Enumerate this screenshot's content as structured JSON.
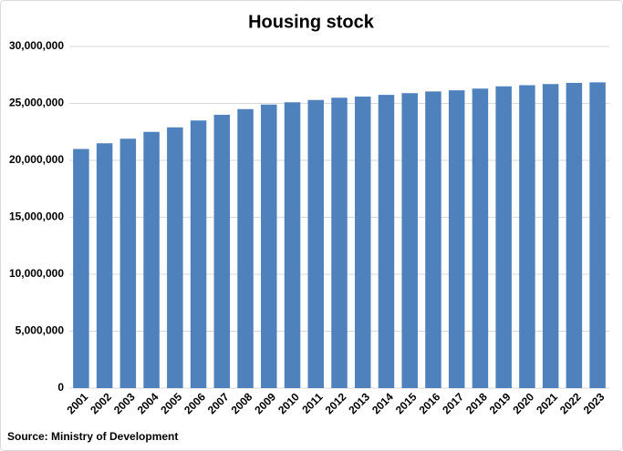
{
  "chart_data": {
    "type": "bar",
    "title": "Housing stock",
    "source": "Source: Ministry of Development",
    "categories": [
      "2001",
      "2002",
      "2003",
      "2004",
      "2005",
      "2006",
      "2007",
      "2008",
      "2009",
      "2010",
      "2011",
      "2012",
      "2013",
      "2014",
      "2015",
      "2016",
      "2017",
      "2018",
      "2019",
      "2020",
      "2021",
      "2022",
      "2023"
    ],
    "values": [
      21000000,
      21500000,
      21900000,
      22500000,
      22900000,
      23500000,
      24000000,
      24500000,
      24900000,
      25100000,
      25300000,
      25500000,
      25600000,
      25750000,
      25900000,
      26050000,
      26150000,
      26300000,
      26500000,
      26600000,
      26700000,
      26800000,
      26850000
    ],
    "color": "#4f81bd",
    "ylim": [
      0,
      30000000
    ],
    "yticks": [
      0,
      {
        "value": 5000000,
        "label": "5,000,000"
      },
      {
        "value": 10000000,
        "label": "10,000,000"
      },
      {
        "value": 15000000,
        "label": "15,000,000"
      },
      {
        "value": 20000000,
        "label": "20,000,000"
      },
      {
        "value": 25000000,
        "label": "25,000,000"
      },
      {
        "value": 30000000,
        "label": "30,000,000"
      }
    ],
    "grid": true
  }
}
